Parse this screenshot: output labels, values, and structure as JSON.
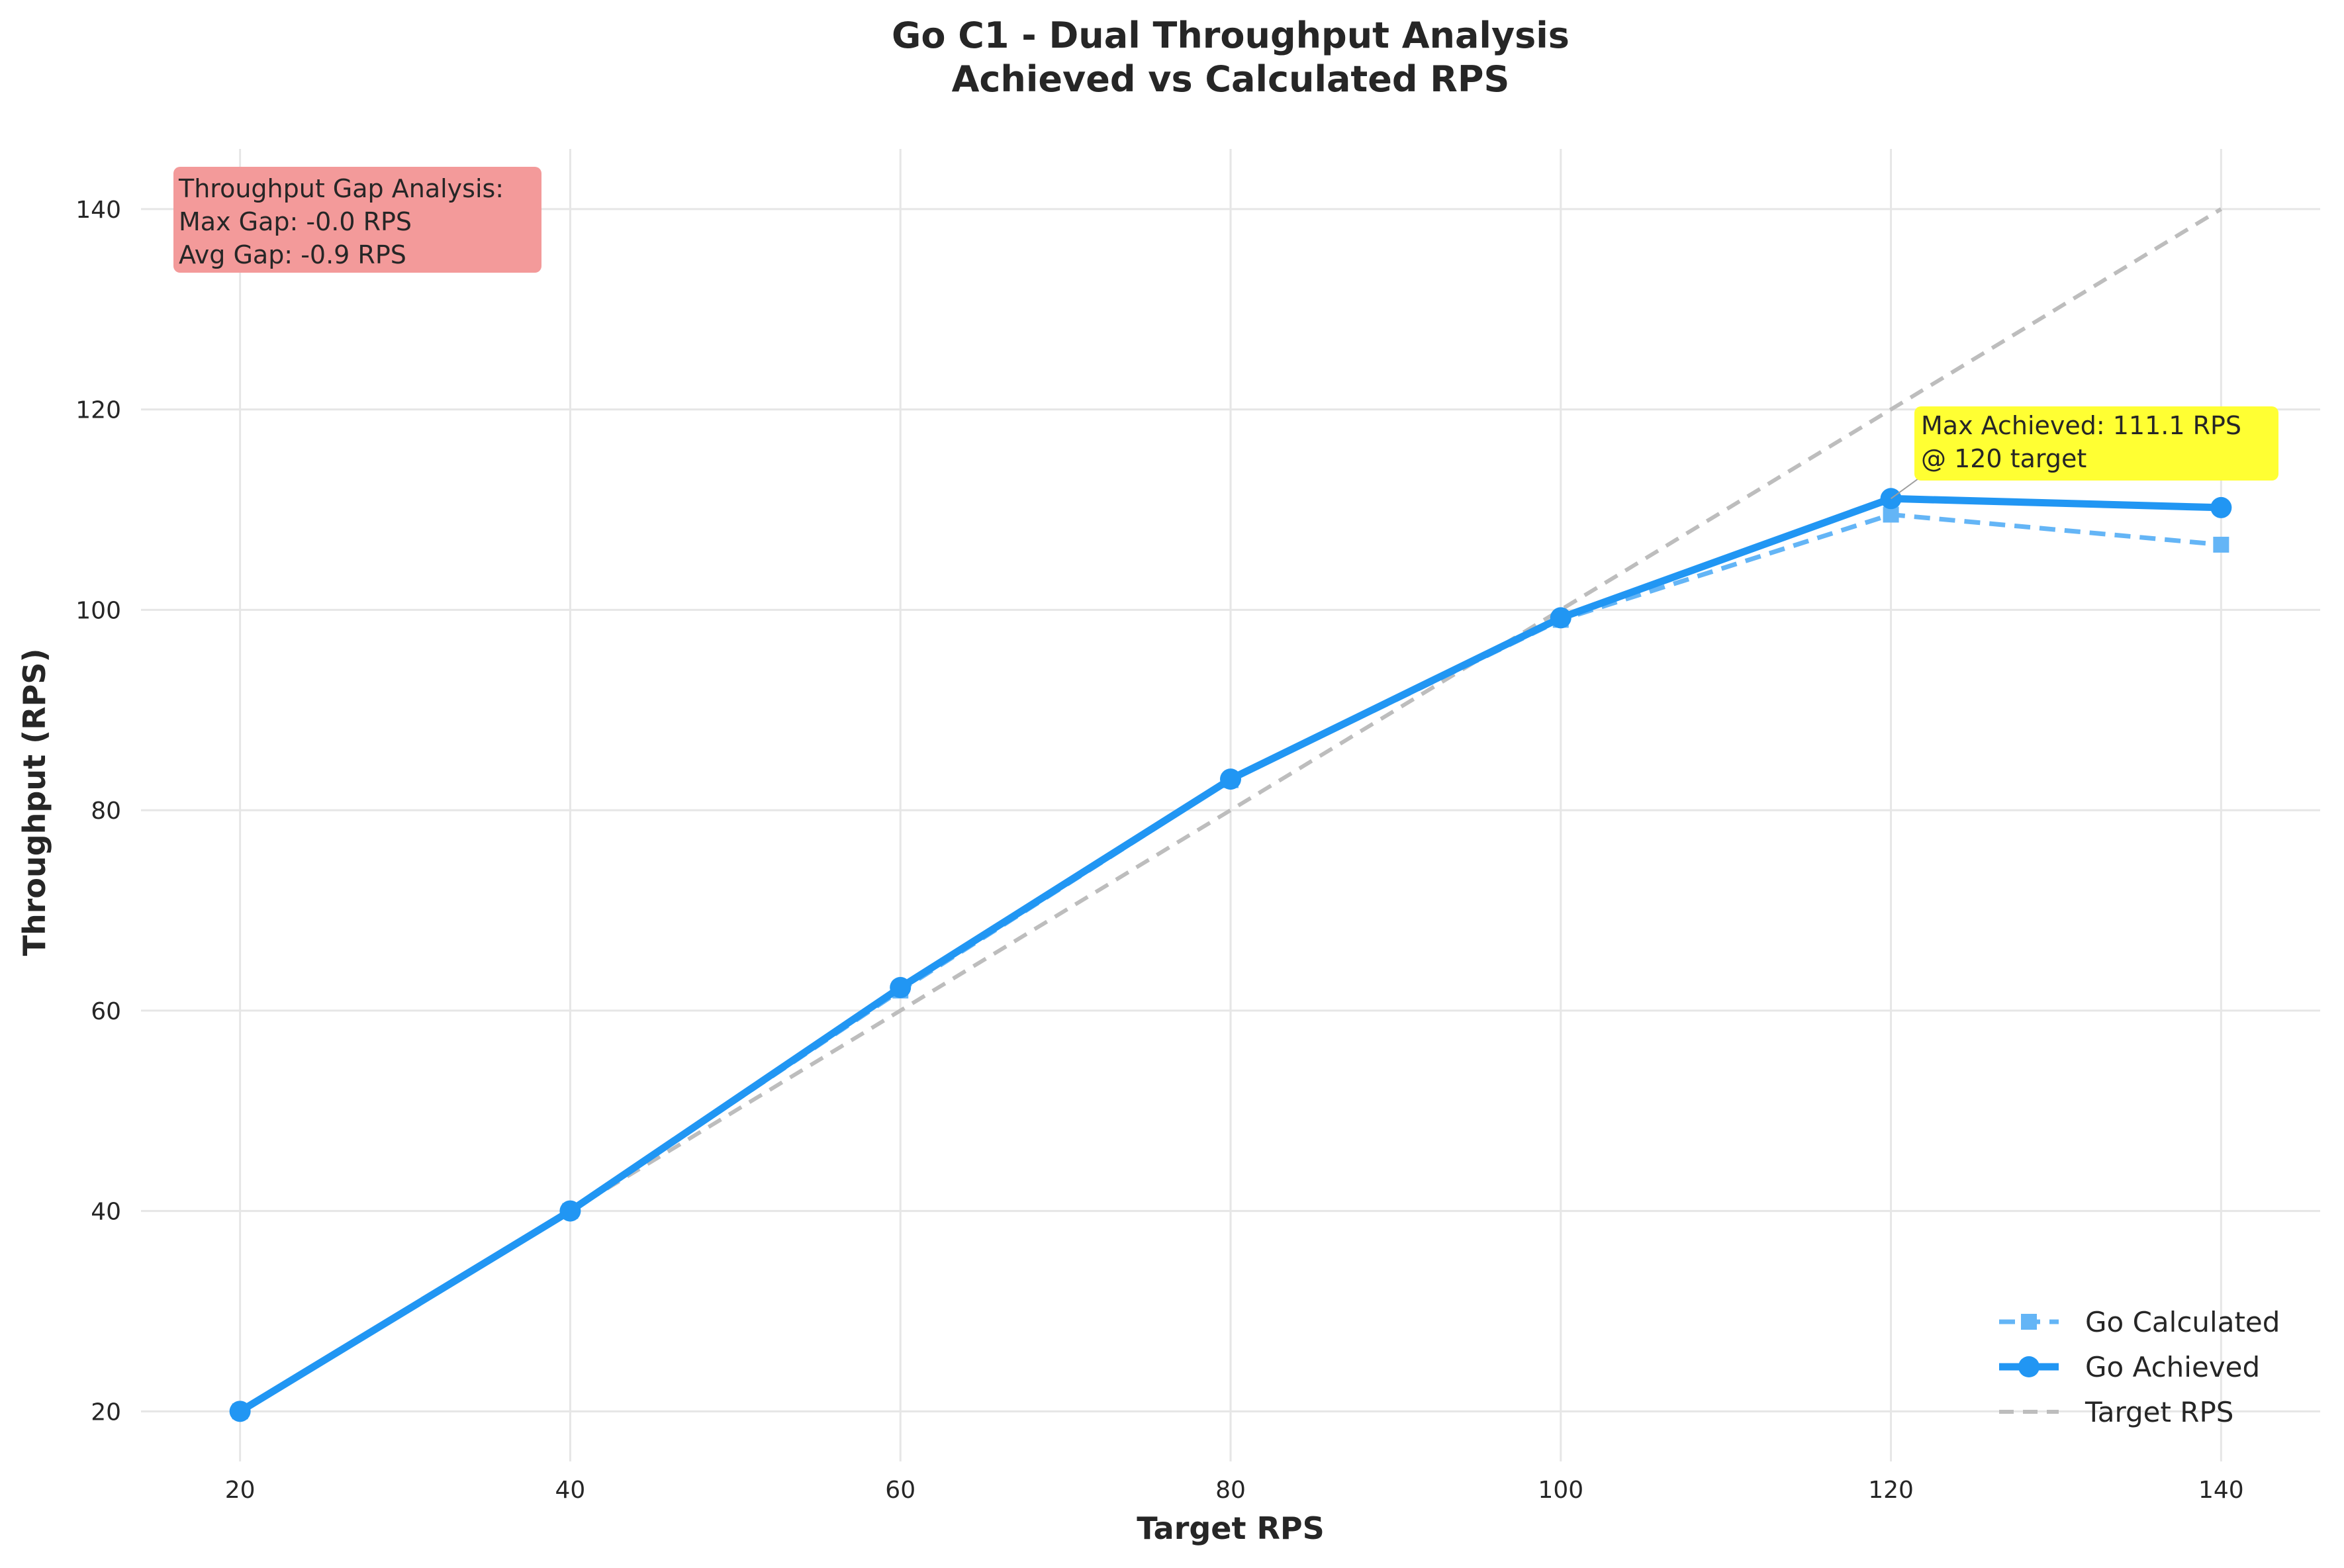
{
  "chart_data": {
    "type": "line",
    "title": "Go C1 - Dual Throughput Analysis",
    "subtitle": "Achieved vs Calculated RPS",
    "xlabel": "Target RPS",
    "ylabel": "Throughput (RPS)",
    "xlim": [
      14,
      146
    ],
    "ylim": [
      15,
      146
    ],
    "xticks": [
      20,
      40,
      60,
      80,
      100,
      120,
      140
    ],
    "yticks": [
      20,
      40,
      60,
      80,
      100,
      120,
      140
    ],
    "grid": true,
    "legend_position": "bottom-right",
    "x": [
      20,
      40,
      60,
      80,
      100,
      120,
      140
    ],
    "series": [
      {
        "name": "Go Calculated",
        "values": [
          20,
          40,
          62,
          83,
          99,
          109.5,
          106.5
        ],
        "color": "#64b5f6",
        "style": "dashed",
        "marker": "square"
      },
      {
        "name": "Go Achieved",
        "values": [
          20,
          40,
          62.3,
          83.1,
          99.2,
          111.1,
          110.2
        ],
        "color": "#2196f3",
        "style": "solid",
        "marker": "circle"
      },
      {
        "name": "Target RPS",
        "values": [
          20,
          40,
          60,
          80,
          100,
          120,
          140
        ],
        "color": "#bdbdbd",
        "style": "dashed",
        "marker": "none"
      }
    ],
    "gap_box": {
      "lines": [
        "Throughput Gap Analysis:",
        "Max Gap: -0.0 RPS",
        "Avg Gap: -0.9 RPS"
      ],
      "color": "#f39a9a"
    },
    "annotation": {
      "lines": [
        "Max Achieved: 111.1 RPS",
        "@ 120 target"
      ],
      "point_x": 120,
      "point_y": 111.1,
      "color": "#ffff33"
    }
  }
}
